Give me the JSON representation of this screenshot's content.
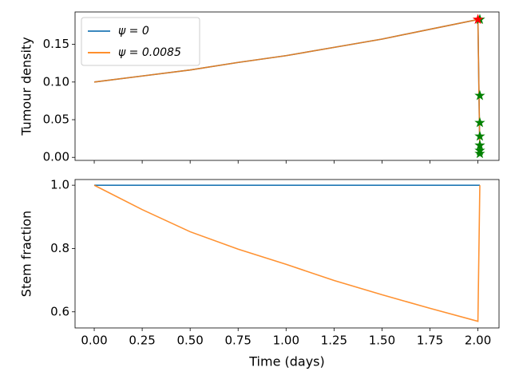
{
  "chart_data": [
    {
      "type": "line",
      "ylabel": "Tumour density",
      "x": [
        0,
        0.25,
        0.5,
        0.75,
        1.0,
        1.25,
        1.5,
        1.75,
        2.0,
        2.01
      ],
      "series": [
        {
          "name": "ψ = 0",
          "color": "#1f77b4",
          "values": [
            0.1,
            0.108,
            0.116,
            0.126,
            0.135,
            0.146,
            0.157,
            0.17,
            0.183,
            0.005
          ]
        },
        {
          "name": "ψ = 0.0085",
          "color": "#ff7f0e",
          "values": [
            0.1,
            0.108,
            0.116,
            0.126,
            0.135,
            0.146,
            0.157,
            0.17,
            0.183,
            0.005
          ]
        }
      ],
      "markers": [
        {
          "color": "green",
          "x": [
            2.01,
            2.01,
            2.01,
            2.01,
            2.01,
            2.01,
            2.01
          ],
          "values": [
            0.183,
            0.082,
            0.046,
            0.028,
            0.016,
            0.009,
            0.005
          ]
        },
        {
          "color": "red",
          "x": [
            2.0
          ],
          "values": [
            0.183
          ]
        }
      ],
      "legend": "upper left",
      "xlim": [
        -0.1,
        2.11
      ],
      "ylim": [
        -0.004,
        0.193
      ],
      "xticks": [
        0,
        0.25,
        0.5,
        0.75,
        1.0,
        1.25,
        1.5,
        1.75,
        2.0
      ],
      "yticks": [
        {
          "value": 0,
          "label": "0.00"
        },
        {
          "value": 0.05,
          "label": "0.05"
        },
        {
          "value": 0.1,
          "label": "0.10"
        },
        {
          "value": 0.15,
          "label": "0.15"
        }
      ]
    },
    {
      "type": "line",
      "ylabel": "Stem fraction",
      "xlabel": "Time (days)",
      "x": [
        0,
        0.25,
        0.5,
        0.75,
        1.0,
        1.25,
        1.5,
        1.75,
        2.0,
        2.01
      ],
      "series": [
        {
          "color": "#1f77b4",
          "values": [
            1,
            1,
            1,
            1,
            1,
            1,
            1,
            1,
            1,
            1
          ]
        },
        {
          "color": "#ff7f0e",
          "values": [
            1,
            0.923,
            0.853,
            0.798,
            0.75,
            0.699,
            0.654,
            0.611,
            0.57,
            1
          ]
        }
      ],
      "xlim": [
        -0.1,
        2.11
      ],
      "ylim": [
        0.549,
        1.018
      ],
      "xticks": [
        {
          "value": 0,
          "label": "0.00"
        },
        {
          "value": 0.25,
          "label": "0.25"
        },
        {
          "value": 0.5,
          "label": "0.50"
        },
        {
          "value": 0.75,
          "label": "0.75"
        },
        {
          "value": 1.0,
          "label": "1.00"
        },
        {
          "value": 1.25,
          "label": "1.25"
        },
        {
          "value": 1.5,
          "label": "1.50"
        },
        {
          "value": 1.75,
          "label": "1.75"
        },
        {
          "value": 2.0,
          "label": "2.00"
        }
      ],
      "yticks": [
        {
          "value": 0.6,
          "label": "0.6"
        },
        {
          "value": 0.8,
          "label": "0.8"
        },
        {
          "value": 1.0,
          "label": "1.0"
        }
      ]
    }
  ]
}
